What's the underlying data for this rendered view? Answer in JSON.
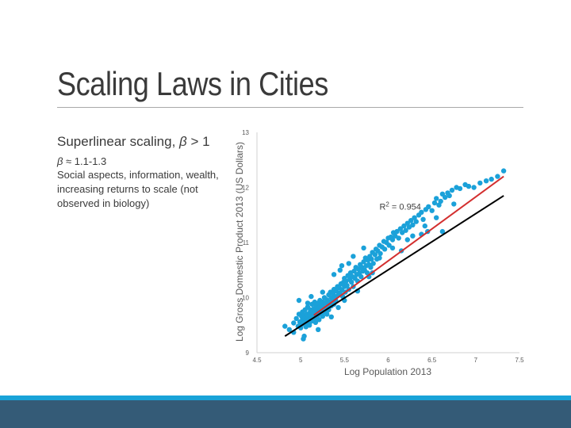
{
  "slide": {
    "title": "Scaling Laws in Cities",
    "heading_text": "Superlinear scaling, ",
    "heading_beta": "β",
    "heading_rest": " > 1",
    "sub_beta": "β",
    "sub_rest": " ≈ 1.1-1.3",
    "description": "Social aspects, information, wealth, increasing returns to scale (not observed in biology)"
  },
  "colors": {
    "points": "#1ba1d9",
    "fit_line": "#d32f2f",
    "reference_line": "#000000",
    "accent_bar": "#19a3d8",
    "footer_bar": "#345b77"
  },
  "chart_data": {
    "type": "scatter",
    "title": "",
    "xlabel": "Log Population 2013",
    "ylabel": "Log Gross Domestic Product 2013 (US Dollars)",
    "xlim": [
      4.5,
      7.5
    ],
    "ylim": [
      9,
      13
    ],
    "xticks": [
      "4.5",
      "5",
      "5.5",
      "6",
      "6.5",
      "7",
      "7.5"
    ],
    "yticks": [
      "9",
      "10",
      "11",
      "12",
      "13"
    ],
    "annotation": {
      "base": "R",
      "sup": "2",
      "rest": " = 0.954",
      "x": 5.9,
      "y": 11.6
    },
    "grid": false,
    "legend": "none",
    "fit_line": {
      "x": [
        5.15,
        7.32
      ],
      "y": [
        9.68,
        12.2
      ]
    },
    "reference_line": {
      "x": [
        4.82,
        7.32
      ],
      "y": [
        9.3,
        11.85
      ]
    },
    "points": [
      [
        4.82,
        9.48
      ],
      [
        4.87,
        9.42
      ],
      [
        4.92,
        9.54
      ],
      [
        4.92,
        9.37
      ],
      [
        4.95,
        9.62
      ],
      [
        4.97,
        9.48
      ],
      [
        4.98,
        9.7
      ],
      [
        4.99,
        9.56
      ],
      [
        5.0,
        9.51
      ],
      [
        5.0,
        9.45
      ],
      [
        5.01,
        9.66
      ],
      [
        5.02,
        9.6
      ],
      [
        5.02,
        9.74
      ],
      [
        5.03,
        9.55
      ],
      [
        5.03,
        9.25
      ],
      [
        5.04,
        9.68
      ],
      [
        5.04,
        9.52
      ],
      [
        5.05,
        9.62
      ],
      [
        5.05,
        9.78
      ],
      [
        5.06,
        9.58
      ],
      [
        5.06,
        9.47
      ],
      [
        5.07,
        9.7
      ],
      [
        5.07,
        9.64
      ],
      [
        5.08,
        9.55
      ],
      [
        5.08,
        9.83
      ],
      [
        5.09,
        9.66
      ],
      [
        5.09,
        9.6
      ],
      [
        5.1,
        9.72
      ],
      [
        5.1,
        9.5
      ],
      [
        5.11,
        9.62
      ],
      [
        5.11,
        9.78
      ],
      [
        5.12,
        9.68
      ],
      [
        5.12,
        9.57
      ],
      [
        5.13,
        9.74
      ],
      [
        5.13,
        9.88
      ],
      [
        5.14,
        9.65
      ],
      [
        5.14,
        9.58
      ],
      [
        5.15,
        9.8
      ],
      [
        5.15,
        9.7
      ],
      [
        5.16,
        9.62
      ],
      [
        5.16,
        9.92
      ],
      [
        5.17,
        9.75
      ],
      [
        5.17,
        9.55
      ],
      [
        5.18,
        9.85
      ],
      [
        5.18,
        9.68
      ],
      [
        5.19,
        9.78
      ],
      [
        5.19,
        9.64
      ],
      [
        5.2,
        9.9
      ],
      [
        5.2,
        9.72
      ],
      [
        5.21,
        9.82
      ],
      [
        5.21,
        9.6
      ],
      [
        5.22,
        9.76
      ],
      [
        5.22,
        9.95
      ],
      [
        5.23,
        9.7
      ],
      [
        5.24,
        9.86
      ],
      [
        5.24,
        9.78
      ],
      [
        5.25,
        9.92
      ],
      [
        5.25,
        9.66
      ],
      [
        5.26,
        9.82
      ],
      [
        5.27,
        10.0
      ],
      [
        5.27,
        9.74
      ],
      [
        5.28,
        9.9
      ],
      [
        5.29,
        9.8
      ],
      [
        5.3,
        9.96
      ],
      [
        5.3,
        9.7
      ],
      [
        5.31,
        9.86
      ],
      [
        5.32,
        10.05
      ],
      [
        5.32,
        9.78
      ],
      [
        5.33,
        9.92
      ],
      [
        5.34,
        10.1
      ],
      [
        5.35,
        9.85
      ],
      [
        5.35,
        10.0
      ],
      [
        5.36,
        9.95
      ],
      [
        5.37,
        10.08
      ],
      [
        5.38,
        9.88
      ],
      [
        5.38,
        10.15
      ],
      [
        5.39,
        10.02
      ],
      [
        5.4,
        9.95
      ],
      [
        5.41,
        10.12
      ],
      [
        5.42,
        10.2
      ],
      [
        5.43,
        10.05
      ],
      [
        5.43,
        9.82
      ],
      [
        5.44,
        10.18
      ],
      [
        5.45,
        10.08
      ],
      [
        5.46,
        10.25
      ],
      [
        5.47,
        10.14
      ],
      [
        5.48,
        10.02
      ],
      [
        5.49,
        10.28
      ],
      [
        5.5,
        10.2
      ],
      [
        5.5,
        10.35
      ],
      [
        5.51,
        10.1
      ],
      [
        5.52,
        10.3
      ],
      [
        5.53,
        10.22
      ],
      [
        5.54,
        10.4
      ],
      [
        5.55,
        10.15
      ],
      [
        5.56,
        10.33
      ],
      [
        5.57,
        10.45
      ],
      [
        5.58,
        10.28
      ],
      [
        5.59,
        10.38
      ],
      [
        5.6,
        10.2
      ],
      [
        5.61,
        10.48
      ],
      [
        5.62,
        10.35
      ],
      [
        5.63,
        10.55
      ],
      [
        5.64,
        10.42
      ],
      [
        5.65,
        10.3
      ],
      [
        5.66,
        10.52
      ],
      [
        5.67,
        10.44
      ],
      [
        5.68,
        10.6
      ],
      [
        5.69,
        10.38
      ],
      [
        5.7,
        10.55
      ],
      [
        5.71,
        10.48
      ],
      [
        5.72,
        10.65
      ],
      [
        5.73,
        10.5
      ],
      [
        5.74,
        10.72
      ],
      [
        5.75,
        10.58
      ],
      [
        5.76,
        10.45
      ],
      [
        5.77,
        10.68
      ],
      [
        5.78,
        10.6
      ],
      [
        5.79,
        10.75
      ],
      [
        5.8,
        10.55
      ],
      [
        5.81,
        10.7
      ],
      [
        5.82,
        10.82
      ],
      [
        5.83,
        10.62
      ],
      [
        5.85,
        10.78
      ],
      [
        5.86,
        10.88
      ],
      [
        5.87,
        10.7
      ],
      [
        5.88,
        10.85
      ],
      [
        5.9,
        10.95
      ],
      [
        5.91,
        10.8
      ],
      [
        5.93,
        10.92
      ],
      [
        5.95,
        11.02
      ],
      [
        5.96,
        10.88
      ],
      [
        5.98,
        11.0
      ],
      [
        6.0,
        11.08
      ],
      [
        6.01,
        10.95
      ],
      [
        6.03,
        11.1
      ],
      [
        6.05,
        11.05
      ],
      [
        6.06,
        11.18
      ],
      [
        6.08,
        11.12
      ],
      [
        6.1,
        11.2
      ],
      [
        6.12,
        11.08
      ],
      [
        6.14,
        11.25
      ],
      [
        6.16,
        11.18
      ],
      [
        6.18,
        11.3
      ],
      [
        6.2,
        11.22
      ],
      [
        6.22,
        11.35
      ],
      [
        6.24,
        11.28
      ],
      [
        6.26,
        11.4
      ],
      [
        6.28,
        11.32
      ],
      [
        6.3,
        11.45
      ],
      [
        6.32,
        11.38
      ],
      [
        6.35,
        11.5
      ],
      [
        6.38,
        11.55
      ],
      [
        6.4,
        11.42
      ],
      [
        6.43,
        11.6
      ],
      [
        6.46,
        11.65
      ],
      [
        6.5,
        11.58
      ],
      [
        6.53,
        11.72
      ],
      [
        6.55,
        11.8
      ],
      [
        6.58,
        11.68
      ],
      [
        6.6,
        11.75
      ],
      [
        6.62,
        11.88
      ],
      [
        6.65,
        11.82
      ],
      [
        6.68,
        11.9
      ],
      [
        6.7,
        11.85
      ],
      [
        6.73,
        11.95
      ],
      [
        6.75,
        11.7
      ],
      [
        6.78,
        12.0
      ],
      [
        6.82,
        11.98
      ],
      [
        6.88,
        12.05
      ],
      [
        6.92,
        12.02
      ],
      [
        6.98,
        12.0
      ],
      [
        7.05,
        12.08
      ],
      [
        7.12,
        12.12
      ],
      [
        7.18,
        12.15
      ],
      [
        7.25,
        12.2
      ],
      [
        7.32,
        12.3
      ],
      [
        6.38,
        11.15
      ],
      [
        6.22,
        11.05
      ],
      [
        5.72,
        10.9
      ],
      [
        5.6,
        10.75
      ],
      [
        5.47,
        10.58
      ],
      [
        5.38,
        10.42
      ],
      [
        5.25,
        10.1
      ],
      [
        5.12,
        10.02
      ],
      [
        4.98,
        9.95
      ],
      [
        5.04,
        9.3
      ],
      [
        5.2,
        9.42
      ],
      [
        5.35,
        9.65
      ],
      [
        5.5,
        9.95
      ],
      [
        5.65,
        10.12
      ],
      [
        5.82,
        10.45
      ],
      [
        6.15,
        10.85
      ],
      [
        6.45,
        11.2
      ],
      [
        6.55,
        11.45
      ],
      [
        6.62,
        11.2
      ],
      [
        5.08,
        9.9
      ],
      [
        5.45,
        10.5
      ],
      [
        5.55,
        10.62
      ],
      [
        5.9,
        10.72
      ],
      [
        6.05,
        10.9
      ],
      [
        6.28,
        11.12
      ],
      [
        6.42,
        11.3
      ],
      [
        5.78,
        10.38
      ]
    ]
  }
}
